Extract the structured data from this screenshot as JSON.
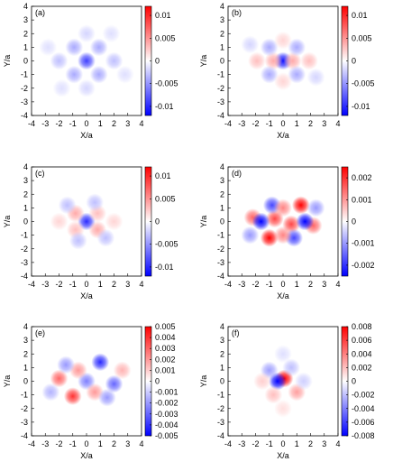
{
  "chart_data": [
    {
      "type": "heatmap",
      "panel_label": "(a)",
      "xlabel": "X/a",
      "ylabel": "Y/a",
      "xlim": [
        -4,
        4
      ],
      "ylim": [
        -4,
        4
      ],
      "xticks": [
        -4,
        -3,
        -2,
        -1,
        0,
        1,
        2,
        3,
        4
      ],
      "yticks": [
        -4,
        -3,
        -2,
        -1,
        0,
        1,
        2,
        3,
        4
      ],
      "clim": [
        -0.012,
        0.012
      ],
      "cticks": [
        0.01,
        0.005,
        0,
        -0.005,
        -0.01
      ],
      "colormap": [
        "#0000ff",
        "#ffffff",
        "#ff0000"
      ],
      "x": [
        0,
        -0.9,
        0.9,
        -0.9,
        0.9,
        -2,
        2,
        0,
        0,
        -2.8,
        2.8,
        -1.8,
        1.8
      ],
      "y": [
        0,
        1,
        1,
        -1,
        -1,
        0,
        0,
        2,
        -2,
        1,
        -1,
        -2,
        2
      ],
      "values": [
        -0.009,
        -0.004,
        -0.004,
        -0.004,
        -0.004,
        -0.003,
        -0.003,
        -0.002,
        -0.002,
        -0.0015,
        -0.0015,
        -0.0015,
        -0.0015
      ]
    },
    {
      "type": "heatmap",
      "panel_label": "(b)",
      "xlabel": "X/a",
      "ylabel": "Y/a",
      "xlim": [
        -4,
        4
      ],
      "ylim": [
        -4,
        4
      ],
      "xticks": [
        -4,
        -3,
        -2,
        -1,
        0,
        1,
        2,
        3,
        4
      ],
      "yticks": [
        -4,
        -3,
        -2,
        -1,
        0,
        1,
        2,
        3,
        4
      ],
      "clim": [
        -0.012,
        0.012
      ],
      "cticks": [
        0.01,
        0.005,
        0,
        -0.005,
        -0.01
      ],
      "colormap": [
        "#0000ff",
        "#ffffff",
        "#ff0000"
      ],
      "x": [
        0,
        -0.7,
        0.7,
        -1,
        1,
        -1,
        1,
        -1.9,
        1.9,
        0,
        0,
        -2.4,
        2.4
      ],
      "y": [
        0,
        0,
        0,
        1,
        1,
        -1,
        -1,
        0,
        0,
        1.5,
        -1.5,
        1.2,
        -1.2
      ],
      "values": [
        -0.011,
        0.004,
        0.004,
        -0.004,
        -0.004,
        -0.004,
        -0.004,
        0.003,
        0.003,
        0.002,
        0.002,
        -0.002,
        -0.002
      ]
    },
    {
      "type": "heatmap",
      "panel_label": "(c)",
      "xlabel": "X/a",
      "ylabel": "Y/a",
      "xlim": [
        -4,
        4
      ],
      "ylim": [
        -4,
        4
      ],
      "xticks": [
        -4,
        -3,
        -2,
        -1,
        0,
        1,
        2,
        3,
        4
      ],
      "yticks": [
        -4,
        -3,
        -2,
        -1,
        0,
        1,
        2,
        3,
        4
      ],
      "clim": [
        -0.012,
        0.012
      ],
      "cticks": [
        0.01,
        0.005,
        0,
        -0.005,
        -0.01
      ],
      "colormap": [
        "#0000ff",
        "#ffffff",
        "#ff0000"
      ],
      "x": [
        0,
        -0.8,
        0.8,
        -0.8,
        0.8,
        0.6,
        -0.6,
        -1.4,
        1.4,
        -2,
        2
      ],
      "y": [
        0,
        0.6,
        -0.6,
        -0.6,
        0.6,
        1.4,
        -1.4,
        1.2,
        -1.2,
        0,
        0
      ],
      "values": [
        -0.01,
        0.004,
        0.004,
        0.003,
        0.003,
        -0.003,
        -0.003,
        -0.003,
        -0.003,
        0.002,
        0.002
      ]
    },
    {
      "type": "heatmap",
      "panel_label": "(d)",
      "xlabel": "X/a",
      "ylabel": "Y/a",
      "xlim": [
        -4,
        4
      ],
      "ylim": [
        -4,
        4
      ],
      "xticks": [
        -4,
        -3,
        -2,
        -1,
        0,
        1,
        2,
        3,
        4
      ],
      "yticks": [
        -4,
        -3,
        -2,
        -1,
        0,
        1,
        2,
        3,
        4
      ],
      "clim": [
        -0.0025,
        0.0025
      ],
      "cticks": [
        0.002,
        0.001,
        0,
        -0.001,
        -0.002
      ],
      "colormap": [
        "#0000ff",
        "#ffffff",
        "#ff0000"
      ],
      "x": [
        -1,
        1.3,
        -0.6,
        0.6,
        -2.2,
        2.2,
        -1.6,
        1.6,
        -0.8,
        0.8,
        0,
        0,
        -2.4,
        2.4
      ],
      "y": [
        -1.2,
        1.2,
        0.2,
        -0.2,
        0.3,
        -0.3,
        0,
        0,
        1.2,
        -1.2,
        1,
        -1,
        -1,
        1
      ],
      "values": [
        0.0025,
        0.0025,
        0.0018,
        0.0018,
        0.0015,
        0.0015,
        -0.0025,
        -0.0025,
        -0.0018,
        -0.0018,
        0.0012,
        0.0012,
        -0.001,
        -0.001
      ]
    },
    {
      "type": "heatmap",
      "panel_label": "(e)",
      "xlabel": "X/a",
      "ylabel": "Y/a",
      "xlim": [
        -4,
        4
      ],
      "ylim": [
        -4,
        4
      ],
      "xticks": [
        -4,
        -3,
        -2,
        -1,
        0,
        1,
        2,
        3,
        4
      ],
      "yticks": [
        -4,
        -3,
        -2,
        -1,
        0,
        1,
        2,
        3,
        4
      ],
      "clim": [
        -0.005,
        0.005
      ],
      "cticks": [
        0.005,
        0.004,
        0.003,
        0.002,
        0.001,
        0,
        -0.001,
        -0.002,
        -0.003,
        -0.004,
        -0.005
      ],
      "colormap": [
        "#0000ff",
        "#ffffff",
        "#ff0000"
      ],
      "x": [
        1,
        -1,
        -2,
        2,
        0,
        -0.6,
        0.6,
        -1.5,
        1.5,
        -2.6,
        2.6
      ],
      "y": [
        1.4,
        -1.1,
        0.2,
        -0.2,
        0,
        0.8,
        -0.8,
        1.2,
        -1.2,
        -0.8,
        0.8
      ],
      "values": [
        -0.0042,
        0.004,
        0.003,
        -0.003,
        -0.0025,
        0.002,
        0.002,
        -0.002,
        -0.002,
        -0.0015,
        0.0015
      ]
    },
    {
      "type": "heatmap",
      "panel_label": "(f)",
      "xlabel": "X/a",
      "ylabel": "Y/a",
      "xlim": [
        -4,
        4
      ],
      "ylim": [
        -4,
        4
      ],
      "xticks": [
        -4,
        -3,
        -2,
        -1,
        0,
        1,
        2,
        3,
        4
      ],
      "yticks": [
        -4,
        -3,
        -2,
        -1,
        0,
        1,
        2,
        3,
        4
      ],
      "clim": [
        -0.008,
        0.008
      ],
      "cticks": [
        0.008,
        0.006,
        0.004,
        0.002,
        0,
        -0.002,
        -0.004,
        -0.006,
        -0.008
      ],
      "colormap": [
        "#0000ff",
        "#ffffff",
        "#ff0000"
      ],
      "x": [
        0.1,
        -0.4,
        -1,
        1,
        0.6,
        -0.7,
        -1.5,
        1.5,
        0,
        0
      ],
      "y": [
        0.2,
        0,
        0.8,
        -0.8,
        1,
        -1,
        0,
        0,
        2,
        -2
      ],
      "values": [
        0.008,
        -0.008,
        -0.003,
        0.003,
        -0.002,
        0.002,
        0.0015,
        -0.0015,
        -0.001,
        0.001
      ]
    }
  ]
}
